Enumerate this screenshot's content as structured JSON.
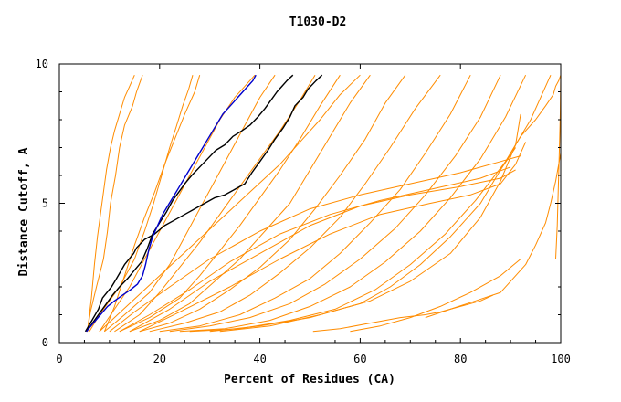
{
  "chart_data": {
    "type": "line",
    "title": "T1030-D2",
    "xlabel": "Percent of Residues (CA)",
    "ylabel": "Distance Cutoff, A",
    "xlim": [
      0,
      100
    ],
    "ylim": [
      0,
      10
    ],
    "x_ticks": [
      "0",
      "20",
      "40",
      "60",
      "80",
      "100"
    ],
    "y_ticks": [
      "0",
      "5",
      "10"
    ],
    "grid": false,
    "legend": "none",
    "colors": {
      "models": "#ff8c00",
      "black_series": "#000000",
      "blue_series": "#0000cc",
      "frame": "#000000",
      "background": "#ffffff"
    },
    "series": [
      {
        "color": "#ff8c00",
        "x": [
          5.6,
          6.2,
          7.4,
          8.8,
          9.6,
          10.2,
          11.2,
          12.0,
          13.0,
          14.6,
          15.4,
          16.0,
          16.6
        ],
        "y": [
          0.4,
          1.1,
          2.0,
          3.0,
          4.0,
          5.0,
          6.0,
          7.0,
          7.8,
          8.5,
          9.0,
          9.3,
          9.6
        ]
      },
      {
        "color": "#ff8c00",
        "x": [
          6.0,
          8.0,
          12.0,
          15.0,
          17.0,
          18.8,
          20.4,
          22.0,
          23.4,
          24.6,
          25.8,
          26.6
        ],
        "y": [
          0.4,
          1.0,
          2.0,
          3.0,
          4.0,
          5.0,
          6.0,
          7.0,
          7.8,
          8.5,
          9.1,
          9.6
        ]
      },
      {
        "color": "#ff8c00",
        "x": [
          8.0,
          11.0,
          14.0,
          17.0,
          20.0,
          23.0,
          26.0,
          29.0,
          32.0,
          35.0,
          37.5,
          39.0
        ],
        "y": [
          0.4,
          1.2,
          2.0,
          3.0,
          4.0,
          5.0,
          6.0,
          7.0,
          8.0,
          8.8,
          9.3,
          9.6
        ]
      },
      {
        "color": "#ff8c00",
        "x": [
          9.0,
          13.0,
          18.0,
          22.0,
          25.0,
          28.0,
          31.0,
          34.0,
          37.0,
          40.0,
          43.0
        ],
        "y": [
          0.4,
          1.0,
          1.8,
          2.8,
          3.8,
          4.8,
          5.8,
          6.8,
          7.8,
          8.8,
          9.6
        ]
      },
      {
        "color": "#ff8c00",
        "x": [
          11.0,
          16.0,
          20.0,
          24.0,
          28.0,
          32.0,
          36.0,
          40.0,
          44.0,
          48.0,
          51.0
        ],
        "y": [
          0.4,
          1.0,
          1.8,
          2.7,
          3.6,
          4.6,
          5.6,
          6.6,
          7.6,
          8.7,
          9.6
        ]
      },
      {
        "color": "#ff8c00",
        "x": [
          12.0,
          18.0,
          24.0,
          28.0,
          32.0,
          36.0,
          40.0,
          44.0,
          48.0,
          52.0,
          56.0
        ],
        "y": [
          0.4,
          0.9,
          1.6,
          2.4,
          3.3,
          4.2,
          5.2,
          6.2,
          7.3,
          8.5,
          9.6
        ]
      },
      {
        "color": "#ff8c00",
        "x": [
          14.0,
          20.0,
          26.0,
          31.0,
          36.0,
          41.0,
          46.0,
          50.0,
          54.0,
          58.0,
          62.0
        ],
        "y": [
          0.4,
          0.8,
          1.4,
          2.2,
          3.0,
          4.0,
          5.0,
          6.2,
          7.4,
          8.6,
          9.6
        ]
      },
      {
        "color": "#ff8c00",
        "x": [
          16.0,
          22.0,
          28.0,
          34.0,
          40.0,
          46.0,
          51.0,
          56.0,
          61.0,
          65.0,
          69.0
        ],
        "y": [
          0.4,
          0.7,
          1.2,
          1.9,
          2.7,
          3.7,
          4.8,
          6.0,
          7.3,
          8.6,
          9.6
        ]
      },
      {
        "color": "#ff8c00",
        "x": [
          18.0,
          25.0,
          32.0,
          38.0,
          44.0,
          50.0,
          56.0,
          61.0,
          66.0,
          71.0,
          76.0
        ],
        "y": [
          0.4,
          0.7,
          1.1,
          1.7,
          2.5,
          3.4,
          4.5,
          5.7,
          7.0,
          8.4,
          9.6
        ]
      },
      {
        "color": "#ff8c00",
        "x": [
          20.0,
          28.0,
          36.0,
          43.0,
          50.0,
          56.0,
          62.0,
          68.0,
          73.0,
          78.0,
          82.0
        ],
        "y": [
          0.4,
          0.6,
          1.0,
          1.6,
          2.3,
          3.2,
          4.3,
          5.5,
          6.8,
          8.2,
          9.6
        ]
      },
      {
        "color": "#ff8c00",
        "x": [
          22.0,
          30.0,
          38.0,
          46.0,
          53.0,
          60.0,
          67.0,
          73.0,
          79.0,
          84.0,
          88.0
        ],
        "y": [
          0.4,
          0.6,
          0.9,
          1.4,
          2.1,
          3.0,
          4.1,
          5.3,
          6.7,
          8.1,
          9.6
        ]
      },
      {
        "color": "#ff8c00",
        "x": [
          24.0,
          33.0,
          42.0,
          50.0,
          58.0,
          65.0,
          72.0,
          78.0,
          84.0,
          89.0,
          93.0
        ],
        "y": [
          0.4,
          0.5,
          0.8,
          1.3,
          2.0,
          2.9,
          4.0,
          5.2,
          6.6,
          8.1,
          9.6
        ]
      },
      {
        "color": "#ff8c00",
        "x": [
          26.0,
          36.0,
          46.0,
          55.0,
          63.0,
          70.0,
          77.0,
          83.0,
          89.0,
          94.0,
          98.0
        ],
        "y": [
          0.4,
          0.5,
          0.8,
          1.2,
          1.9,
          2.8,
          3.9,
          5.1,
          6.5,
          8.0,
          9.6
        ]
      },
      {
        "color": "#ff8c00",
        "x": [
          8.0,
          14.0,
          20.0,
          26.0,
          32.0,
          38.0,
          44.0,
          48.0,
          52.0,
          56.0,
          60.0
        ],
        "y": [
          0.4,
          1.4,
          2.4,
          3.4,
          4.4,
          5.4,
          6.4,
          7.2,
          8.0,
          8.9,
          9.6
        ]
      },
      {
        "color": "#ff8c00",
        "x": [
          10.0,
          15.0,
          22.0,
          30.0,
          40.0,
          50.0,
          60.0,
          70.0,
          80.0,
          88.0,
          92.0
        ],
        "y": [
          0.4,
          1.1,
          2.0,
          3.0,
          4.0,
          4.8,
          5.3,
          5.7,
          6.1,
          6.5,
          6.7
        ]
      },
      {
        "color": "#ff8c00",
        "x": [
          12.0,
          18.0,
          26.0,
          34.0,
          44.0,
          54.0,
          64.0,
          74.0,
          84.0,
          90.0
        ],
        "y": [
          0.4,
          1.0,
          1.9,
          2.9,
          3.9,
          4.6,
          5.1,
          5.5,
          5.9,
          6.3
        ]
      },
      {
        "color": "#ff8c00",
        "x": [
          14.0,
          22.0,
          30.0,
          40.0,
          50.0,
          60.0,
          70.0,
          80.0,
          88.0,
          91.0
        ],
        "y": [
          0.4,
          1.2,
          2.2,
          3.2,
          4.2,
          4.9,
          5.3,
          5.6,
          5.9,
          6.2
        ]
      },
      {
        "color": "#ff8c00",
        "x": [
          16.0,
          24.0,
          34.0,
          44.0,
          54.0,
          64.0,
          74.0,
          82.0,
          88.0,
          91.0,
          93.0
        ],
        "y": [
          0.4,
          1.1,
          2.0,
          3.0,
          3.9,
          4.6,
          5.0,
          5.3,
          5.7,
          6.4,
          7.2
        ]
      },
      {
        "color": "#ff8c00",
        "x": [
          30.0,
          40.0,
          50.0,
          60.0,
          66.0,
          72.0,
          78.0,
          84.0,
          88.0,
          91.0
        ],
        "y": [
          0.4,
          0.6,
          0.9,
          1.4,
          2.0,
          2.8,
          3.8,
          5.0,
          6.2,
          7.0
        ]
      },
      {
        "color": "#ff8c00",
        "x": [
          32.0,
          42.0,
          52.0,
          62.0,
          70.0,
          78.0,
          84.0,
          88.0,
          91.0,
          92.0
        ],
        "y": [
          0.4,
          0.6,
          1.0,
          1.5,
          2.2,
          3.2,
          4.5,
          5.8,
          7.1,
          8.2
        ]
      },
      {
        "color": "#ff8c00",
        "x": [
          5.6,
          6.4,
          7.0,
          7.6,
          8.2,
          8.8,
          9.4,
          10.2,
          11.0,
          12.0,
          13.0,
          14.0,
          15.0
        ],
        "y": [
          0.4,
          1.6,
          2.8,
          3.8,
          4.6,
          5.4,
          6.2,
          7.0,
          7.6,
          8.2,
          8.8,
          9.2,
          9.6
        ]
      },
      {
        "color": "#ff8c00",
        "x": [
          9.0,
          11.0,
          13.0,
          15.0,
          17.0,
          19.0,
          21.0,
          23.0,
          25.0,
          27.0,
          28.0
        ],
        "y": [
          0.4,
          1.3,
          2.4,
          3.5,
          4.5,
          5.4,
          6.4,
          7.3,
          8.2,
          9.0,
          9.6
        ]
      },
      {
        "color": "#ff8c00",
        "x": [
          50.6,
          56.0,
          62.0,
          68.0,
          73.0,
          76.0,
          80.0,
          84.0,
          86.5
        ],
        "y": [
          0.4,
          0.5,
          0.7,
          0.9,
          1.0,
          1.1,
          1.3,
          1.5,
          1.7
        ]
      },
      {
        "color": "#ff8c00",
        "x": [
          73.0,
          78.0,
          83.0,
          88.0,
          90.0,
          93.0,
          95.0,
          97.0,
          98.0,
          99.0,
          100.0
        ],
        "y": [
          0.9,
          1.2,
          1.5,
          1.8,
          2.2,
          2.8,
          3.5,
          4.3,
          5.0,
          5.8,
          6.8
        ]
      },
      {
        "color": "#ff8c00",
        "x": [
          58.0,
          64.0,
          70.0,
          76.0,
          82.0,
          88.0,
          92.0
        ],
        "y": [
          0.4,
          0.6,
          0.9,
          1.3,
          1.8,
          2.4,
          3.0
        ]
      },
      {
        "color": "#ff8c00",
        "x": [
          88.0,
          90.0,
          92.0,
          95.0,
          97.0,
          98.5,
          99.0,
          99.6,
          100.0
        ],
        "y": [
          6.2,
          6.8,
          7.4,
          8.0,
          8.5,
          8.9,
          9.2,
          9.4,
          9.6
        ]
      },
      {
        "color": "#ff8c00",
        "x": [
          99.0,
          99.3,
          99.5,
          99.7,
          99.9,
          100.0
        ],
        "y": [
          3.0,
          4.2,
          5.5,
          6.8,
          8.2,
          9.6
        ]
      },
      {
        "color": "#000000",
        "x": [
          5.2,
          6.5,
          7.8,
          8.6,
          10.4,
          11.4,
          13.0,
          14.8,
          15.4,
          17.0,
          19.0,
          21.0,
          23.0,
          25.0,
          27.0,
          29.0,
          31.0,
          33.0,
          35.0,
          37.0,
          38.4,
          40.0,
          41.6,
          43.0,
          44.6,
          46.0,
          47.0,
          48.6,
          49.6,
          51.2,
          52.4
        ],
        "y": [
          0.4,
          0.8,
          1.2,
          1.6,
          2.0,
          2.3,
          2.8,
          3.2,
          3.4,
          3.7,
          3.9,
          4.2,
          4.4,
          4.6,
          4.8,
          5.0,
          5.2,
          5.3,
          5.5,
          5.7,
          6.1,
          6.5,
          6.9,
          7.3,
          7.7,
          8.1,
          8.5,
          8.8,
          9.1,
          9.4,
          9.6
        ]
      },
      {
        "color": "#000000",
        "x": [
          5.4,
          7.0,
          8.2,
          9.4,
          10.6,
          12.0,
          13.6,
          15.0,
          16.4,
          17.6,
          18.6,
          20.0,
          21.4,
          22.6,
          23.8,
          25.0,
          26.4,
          28.0,
          29.6,
          31.2,
          33.0,
          34.6,
          36.4,
          38.0,
          39.6,
          41.0,
          42.2,
          43.4,
          44.4,
          45.4,
          46.6
        ],
        "y": [
          0.4,
          0.8,
          1.1,
          1.4,
          1.7,
          2.0,
          2.3,
          2.6,
          2.9,
          3.4,
          3.9,
          4.3,
          4.7,
          5.1,
          5.4,
          5.7,
          6.0,
          6.3,
          6.6,
          6.9,
          7.1,
          7.4,
          7.6,
          7.8,
          8.1,
          8.4,
          8.7,
          9.0,
          9.2,
          9.4,
          9.6
        ]
      },
      {
        "color": "#0000cc",
        "x": [
          5.4,
          6.8,
          8.2,
          9.6,
          11.0,
          12.6,
          14.2,
          15.6,
          16.6,
          17.2,
          17.8,
          18.6,
          19.6,
          20.6,
          21.6,
          22.6,
          23.6,
          24.6,
          25.6,
          26.6,
          27.6,
          28.6,
          29.6,
          30.6,
          31.6,
          32.6,
          33.6,
          34.6,
          35.6,
          36.6,
          37.6,
          38.6,
          39.2
        ],
        "y": [
          0.4,
          0.7,
          1.0,
          1.3,
          1.5,
          1.7,
          1.9,
          2.1,
          2.4,
          2.8,
          3.3,
          3.8,
          4.2,
          4.6,
          4.9,
          5.2,
          5.5,
          5.8,
          6.1,
          6.4,
          6.7,
          7.0,
          7.3,
          7.6,
          7.9,
          8.2,
          8.4,
          8.6,
          8.8,
          9.0,
          9.2,
          9.4,
          9.6
        ]
      }
    ]
  }
}
